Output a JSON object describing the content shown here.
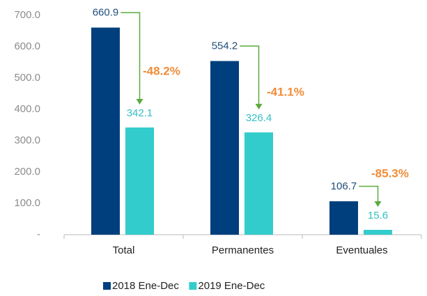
{
  "chart_data": {
    "type": "bar",
    "categories": [
      "Total",
      "Permanentes",
      "Eventuales"
    ],
    "series": [
      {
        "name": "2018 Ene-Dec",
        "color": "#003f7d",
        "values": [
          660.9,
          554.2,
          106.7
        ]
      },
      {
        "name": "2019 Ene-Dec",
        "color": "#33cccc",
        "values": [
          342.1,
          326.4,
          15.6
        ]
      }
    ],
    "annotations": [
      "-48.2%",
      "-41.1%",
      "-85.3%"
    ],
    "ylim": [
      0,
      700
    ],
    "yticks": [
      {
        "value": 0,
        "label": "-"
      },
      {
        "value": 100,
        "label": "100.0"
      },
      {
        "value": 200,
        "label": "200.0"
      },
      {
        "value": 300,
        "label": "300.0"
      },
      {
        "value": 400,
        "label": "400.0"
      },
      {
        "value": 500,
        "label": "500.0"
      },
      {
        "value": 600,
        "label": "600.0"
      },
      {
        "value": 700,
        "label": "700.0"
      }
    ],
    "grid": false,
    "legend": "bottom"
  }
}
